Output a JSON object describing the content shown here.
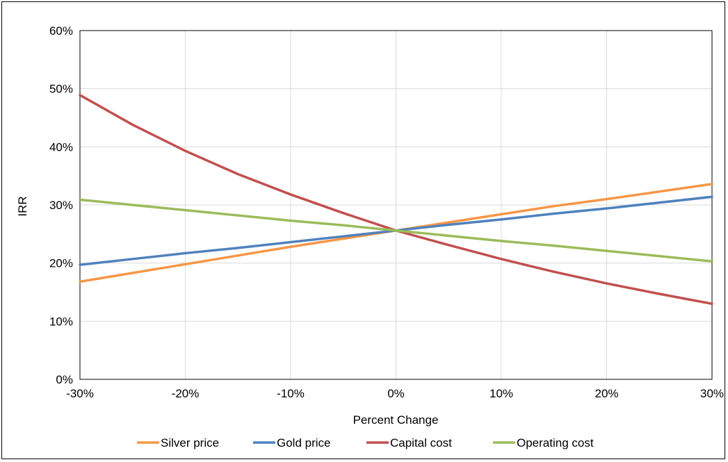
{
  "chart_data": {
    "type": "line",
    "title": "",
    "xlabel": "Percent Change",
    "ylabel": "IRR",
    "x": [
      -30,
      -25,
      -20,
      -15,
      -10,
      -5,
      0,
      5,
      10,
      15,
      20,
      25,
      30
    ],
    "x_tick_values": [
      -30,
      -20,
      -10,
      0,
      10,
      20,
      30
    ],
    "x_tick_labels": [
      "-30%",
      "-20%",
      "-10%",
      "0%",
      "10%",
      "20%",
      "30%"
    ],
    "y_tick_values": [
      0,
      10,
      20,
      30,
      40,
      50,
      60
    ],
    "y_tick_labels": [
      "0%",
      "10%",
      "20%",
      "30%",
      "40%",
      "50%",
      "60%"
    ],
    "xlim": [
      -30,
      30
    ],
    "ylim": [
      0,
      60
    ],
    "grid": true,
    "legend_position": "bottom",
    "series": [
      {
        "name": "Silver price",
        "color": "#F79646",
        "values": [
          16.8,
          18.3,
          19.8,
          21.3,
          22.8,
          24.2,
          25.6,
          27.0,
          28.4,
          29.8,
          31.0,
          32.3,
          33.6
        ]
      },
      {
        "name": "Gold price",
        "color": "#4F81BD",
        "values": [
          19.7,
          20.7,
          21.7,
          22.6,
          23.6,
          24.6,
          25.6,
          26.6,
          27.5,
          28.5,
          29.4,
          30.4,
          31.4
        ]
      },
      {
        "name": "Capital cost",
        "color": "#C0504D",
        "values": [
          48.9,
          43.8,
          39.3,
          35.3,
          31.8,
          28.6,
          25.6,
          23.1,
          20.7,
          18.5,
          16.5,
          14.7,
          13.0
        ]
      },
      {
        "name": "Operating cost",
        "color": "#9BBB59",
        "values": [
          30.9,
          30.0,
          29.1,
          28.2,
          27.3,
          26.5,
          25.6,
          24.7,
          23.8,
          23.0,
          22.1,
          21.2,
          20.3
        ]
      }
    ]
  }
}
